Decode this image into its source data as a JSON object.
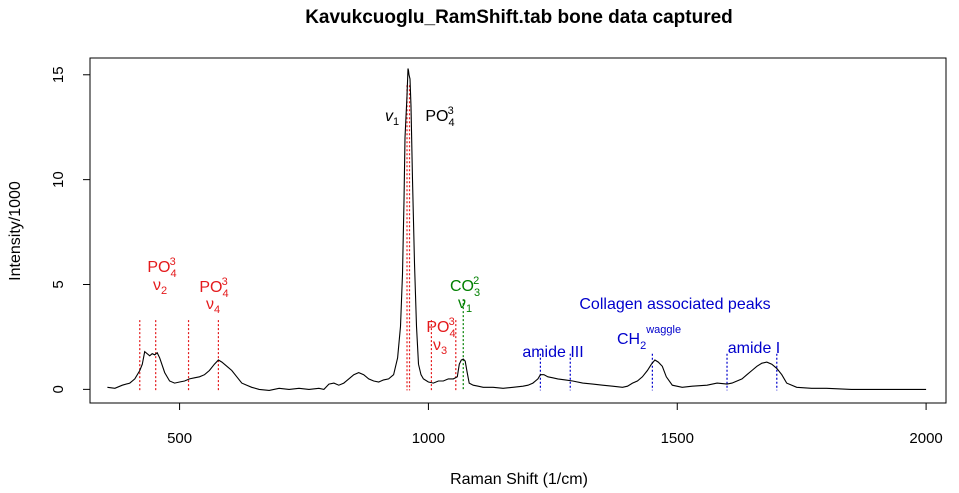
{
  "chart_data": {
    "type": "line",
    "title": "Kavukcuoglu_RamShift.tab bone data captured",
    "xlabel": "Raman Shift (1/cm)",
    "ylabel": "Intensity/1000",
    "xlim": [
      320,
      2040
    ],
    "ylim": [
      -0.65,
      15.8
    ],
    "xticks": [
      500,
      1000,
      1500,
      2000
    ],
    "xtick_labels": [
      "500",
      "1000",
      "1500",
      "2000"
    ],
    "yticks": [
      0,
      5,
      10,
      15
    ],
    "ytick_labels": [
      "0",
      "5",
      "10",
      "15"
    ],
    "grid": false,
    "legend": "none",
    "colors": {
      "line": "#000000",
      "phosphate": "#e41a1c",
      "carbonate": "#008000",
      "collagen": "#0000cc",
      "nu1": "#000000"
    },
    "series": [
      {
        "x": [
          355,
          370,
          385,
          400,
          410,
          420,
          425,
          430,
          440,
          445,
          450,
          455,
          460,
          470,
          480,
          490,
          500,
          510,
          520,
          530,
          540,
          550,
          560,
          570,
          578,
          585,
          595,
          605,
          615,
          625,
          635,
          645,
          660,
          680,
          700,
          720,
          740,
          760,
          780,
          790,
          800,
          810,
          820,
          830,
          840,
          850,
          860,
          870,
          880,
          890,
          900,
          910,
          920,
          930,
          938,
          944,
          948,
          951,
          953,
          955,
          957,
          959,
          960,
          961,
          963,
          965,
          968,
          972,
          976,
          980,
          985,
          990,
          1000,
          1010,
          1020,
          1030,
          1040,
          1050,
          1058,
          1062,
          1066,
          1070,
          1074,
          1078,
          1082,
          1090,
          1100,
          1110,
          1130,
          1150,
          1170,
          1190,
          1200,
          1210,
          1220,
          1225,
          1232,
          1240,
          1250,
          1260,
          1275,
          1290,
          1310,
          1330,
          1350,
          1370,
          1390,
          1400,
          1410,
          1420,
          1430,
          1440,
          1448,
          1455,
          1462,
          1470,
          1478,
          1490,
          1510,
          1530,
          1560,
          1580,
          1600,
          1610,
          1620,
          1630,
          1640,
          1650,
          1660,
          1670,
          1680,
          1690,
          1700,
          1710,
          1720,
          1740,
          1770,
          1800,
          1850,
          1900,
          2000
        ],
        "y": [
          0.1,
          0.05,
          0.2,
          0.3,
          0.5,
          0.9,
          1.2,
          1.8,
          1.6,
          1.7,
          1.65,
          1.75,
          1.5,
          0.8,
          0.4,
          0.3,
          0.35,
          0.4,
          0.5,
          0.55,
          0.6,
          0.7,
          0.9,
          1.2,
          1.4,
          1.3,
          1.1,
          0.9,
          0.6,
          0.3,
          0.2,
          0.1,
          0.0,
          -0.05,
          0.05,
          0.0,
          0.05,
          0.0,
          0.05,
          0.0,
          0.25,
          0.3,
          0.2,
          0.3,
          0.5,
          0.7,
          0.8,
          0.7,
          0.5,
          0.4,
          0.35,
          0.45,
          0.5,
          0.7,
          1.5,
          3,
          5.5,
          9,
          12,
          13,
          14,
          15.3,
          15.2,
          15.0,
          14.8,
          13.5,
          10,
          6,
          3,
          1.2,
          0.7,
          0.5,
          0.35,
          0.3,
          0.4,
          0.4,
          0.5,
          0.5,
          0.6,
          1.2,
          1.4,
          1.45,
          1.35,
          0.8,
          0.3,
          0.2,
          0.15,
          0.1,
          0.1,
          0.05,
          0.1,
          0.15,
          0.2,
          0.3,
          0.5,
          0.7,
          0.7,
          0.6,
          0.55,
          0.5,
          0.45,
          0.4,
          0.3,
          0.25,
          0.2,
          0.15,
          0.1,
          0.15,
          0.3,
          0.4,
          0.6,
          0.9,
          1.2,
          1.4,
          1.3,
          1.1,
          0.6,
          0.2,
          0.1,
          0.15,
          0.2,
          0.3,
          0.25,
          0.3,
          0.4,
          0.5,
          0.7,
          0.9,
          1.1,
          1.25,
          1.3,
          1.2,
          1.0,
          0.7,
          0.3,
          0.1,
          0.05,
          0.05,
          0.0,
          0.0,
          0.0
        ]
      }
    ],
    "reference_lines": [
      {
        "x": 420,
        "group": "phosphate"
      },
      {
        "x": 452,
        "group": "phosphate"
      },
      {
        "x": 518,
        "group": "phosphate"
      },
      {
        "x": 578,
        "group": "phosphate"
      },
      {
        "x": 957,
        "group": "phosphate"
      },
      {
        "x": 962,
        "group": "phosphate"
      },
      {
        "x": 1006,
        "group": "phosphate"
      },
      {
        "x": 1055,
        "group": "phosphate"
      },
      {
        "x": 1070,
        "group": "carbonate"
      },
      {
        "x": 1225,
        "group": "collagen"
      },
      {
        "x": 1285,
        "group": "collagen"
      },
      {
        "x": 1450,
        "group": "collagen"
      },
      {
        "x": 1600,
        "group": "collagen"
      },
      {
        "x": 1700,
        "group": "collagen"
      }
    ],
    "annotations": {
      "po4_v2": {
        "x": 432,
        "ion": "PO",
        "sub": "4",
        "sup": "3",
        "mode": "ν",
        "mode_sub": "2"
      },
      "po4_v4": {
        "x": 555,
        "ion": "PO",
        "sub": "4",
        "sup": "3",
        "mode": "ν",
        "mode_sub": "4"
      },
      "po4_v1_mode": {
        "x": 917,
        "mode": "v",
        "mode_sub": "1"
      },
      "po4_v1_ion": {
        "x": 1010,
        "ion": "PO",
        "sub": "4",
        "sup": "3"
      },
      "po4_v3": {
        "x": 1020,
        "ion": "PO",
        "sub": "4",
        "sup": "3",
        "mode": "ν",
        "mode_sub": "3"
      },
      "co3_v1": {
        "x": 1070,
        "ion": "CO",
        "sub": "3",
        "sup": "2",
        "mode": "ν",
        "mode_sub": "1"
      },
      "collagen_header": "Collagen associated peaks",
      "amide_iii": "amide III",
      "ch2_ion": "CH",
      "ch2_sub": "2",
      "ch2_sup": "waggle",
      "amide_i": "amide I"
    }
  }
}
